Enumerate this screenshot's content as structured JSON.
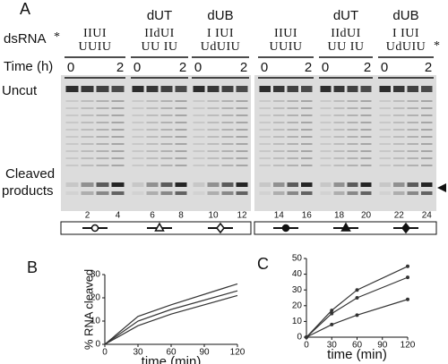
{
  "panel_a": {
    "label": "A",
    "dsrna_label": "dsRNA",
    "time_label": "Time (h)",
    "uncut_label": "Uncut",
    "cleaved_label": [
      "Cleaved",
      "products"
    ],
    "asterisks": [
      "*",
      "*"
    ],
    "groups": [
      {
        "seq": [
          "IIUI",
          "UUIU"
        ],
        "times": [
          0,
          2
        ]
      },
      {
        "label": "dUT",
        "seq": [
          "IIdUI",
          "UU IU"
        ],
        "times": [
          0,
          2
        ]
      },
      {
        "label": "dUB",
        "seq": [
          "I IUI",
          "UdUIU"
        ],
        "times": [
          0,
          2
        ]
      },
      {
        "seq": [
          "IIUI",
          "UUIU"
        ],
        "times": [
          0,
          2
        ]
      },
      {
        "label": "dUT",
        "seq": [
          "IIdUI",
          "UU IU"
        ],
        "times": [
          0,
          2
        ]
      },
      {
        "label": "dUB",
        "seq": [
          "I IUI",
          "UdUIU"
        ],
        "times": [
          0,
          2
        ]
      }
    ],
    "lane_numbers": [
      2,
      4,
      6,
      8,
      10,
      12,
      14,
      16,
      18,
      20,
      22,
      24
    ]
  },
  "chart_data": [
    {
      "type": "line",
      "title": "B",
      "ylabel": "% RNA cleaved",
      "xlabel": "time (min)",
      "x": [
        0,
        30,
        60,
        120
      ],
      "xlim": [
        0,
        120
      ],
      "xticks": [
        0,
        30,
        60,
        90,
        120
      ],
      "ylim": [
        0,
        30
      ],
      "yticks": [
        0,
        10,
        20,
        30
      ],
      "markers": false,
      "series": [
        {
          "color": "#333333",
          "values": [
            0,
            12,
            17,
            26
          ]
        },
        {
          "color": "#333333",
          "values": [
            0,
            10,
            15,
            23
          ]
        },
        {
          "color": "#333333",
          "values": [
            0,
            8,
            13,
            21
          ]
        }
      ]
    },
    {
      "type": "line",
      "title": "C",
      "xlabel": "time (min)",
      "x": [
        0,
        30,
        60,
        120
      ],
      "xlim": [
        0,
        120
      ],
      "xticks": [
        0,
        30,
        60,
        90,
        120
      ],
      "ylim": [
        0,
        50
      ],
      "yticks": [
        0,
        10,
        20,
        30,
        40,
        50
      ],
      "markers": true,
      "series": [
        {
          "color": "#333333",
          "values": [
            0,
            17,
            30,
            45
          ]
        },
        {
          "color": "#333333",
          "values": [
            0,
            15,
            25,
            38
          ]
        },
        {
          "color": "#333333",
          "values": [
            0,
            8,
            14,
            24
          ]
        }
      ]
    }
  ]
}
